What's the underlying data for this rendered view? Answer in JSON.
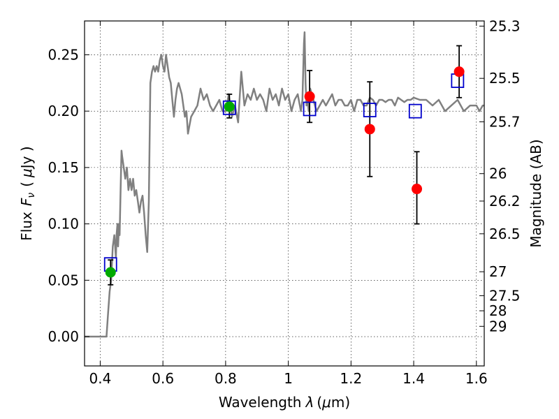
{
  "chart_data": {
    "type": "scatter",
    "xlabel_main": "Wavelength",
    "xlabel_sym": "λ",
    "xlabel_unit_open": "(",
    "xlabel_unit_mu": "μ",
    "xlabel_unit_rest": "m)",
    "ylabel_main": "Flux",
    "ylabel_sym": "F",
    "ylabel_sub": "ν",
    "ylabel_unit_open": "(",
    "ylabel_unit_mu": "μ",
    "ylabel_unit_rest": "Jy )",
    "y2label": "Magnitude (AB)",
    "xlim": [
      0.35,
      1.625
    ],
    "ylim": [
      -0.026,
      0.28
    ],
    "grid": true,
    "x_ticks": [
      {
        "v": 0.4,
        "label": "0.4"
      },
      {
        "v": 0.6,
        "label": "0.6"
      },
      {
        "v": 0.8,
        "label": "0.8"
      },
      {
        "v": 1.0,
        "label": "1"
      },
      {
        "v": 1.2,
        "label": "1.2"
      },
      {
        "v": 1.4,
        "label": "1.4"
      },
      {
        "v": 1.6,
        "label": "1.6"
      }
    ],
    "y_ticks": [
      {
        "v": 0.0,
        "label": "0.00"
      },
      {
        "v": 0.05,
        "label": "0.05"
      },
      {
        "v": 0.1,
        "label": "0.10"
      },
      {
        "v": 0.15,
        "label": "0.15"
      },
      {
        "v": 0.2,
        "label": "0.20"
      },
      {
        "v": 0.25,
        "label": "0.25"
      }
    ],
    "mag_ticks": [
      {
        "v": 25.3,
        "label": "25.3"
      },
      {
        "v": 25.5,
        "label": "25.5"
      },
      {
        "v": 25.7,
        "label": "25.7"
      },
      {
        "v": 26,
        "label": "26"
      },
      {
        "v": 26.2,
        "label": "26.2"
      },
      {
        "v": 26.5,
        "label": "26.5"
      },
      {
        "v": 27,
        "label": "27"
      },
      {
        "v": 27.5,
        "label": "27.5"
      },
      {
        "v": 28,
        "label": "28"
      },
      {
        "v": 29,
        "label": "29"
      }
    ],
    "series": [
      {
        "type": "line",
        "color": "#808080",
        "x": [
          0.35,
          0.41,
          0.42,
          0.425,
          0.43,
          0.435,
          0.44,
          0.445,
          0.45,
          0.452,
          0.455,
          0.457,
          0.46,
          0.462,
          0.465,
          0.468,
          0.47,
          0.475,
          0.48,
          0.485,
          0.49,
          0.495,
          0.5,
          0.505,
          0.51,
          0.515,
          0.52,
          0.525,
          0.53,
          0.535,
          0.54,
          0.545,
          0.55,
          0.555,
          0.56,
          0.565,
          0.57,
          0.575,
          0.58,
          0.585,
          0.59,
          0.595,
          0.6,
          0.605,
          0.61,
          0.615,
          0.62,
          0.625,
          0.63,
          0.635,
          0.64,
          0.645,
          0.65,
          0.66,
          0.67,
          0.675,
          0.68,
          0.69,
          0.7,
          0.71,
          0.72,
          0.73,
          0.74,
          0.75,
          0.76,
          0.77,
          0.78,
          0.79,
          0.8,
          0.81,
          0.82,
          0.83,
          0.84,
          0.85,
          0.86,
          0.87,
          0.88,
          0.89,
          0.9,
          0.91,
          0.92,
          0.93,
          0.94,
          0.95,
          0.96,
          0.97,
          0.98,
          0.99,
          1.0,
          1.01,
          1.02,
          1.03,
          1.04,
          1.045,
          1.05,
          1.052,
          1.055,
          1.058,
          1.06,
          1.065,
          1.07,
          1.08,
          1.09,
          1.1,
          1.11,
          1.12,
          1.13,
          1.14,
          1.15,
          1.16,
          1.17,
          1.18,
          1.19,
          1.2,
          1.21,
          1.22,
          1.23,
          1.24,
          1.25,
          1.26,
          1.27,
          1.28,
          1.29,
          1.3,
          1.31,
          1.32,
          1.33,
          1.34,
          1.35,
          1.36,
          1.37,
          1.38,
          1.39,
          1.4,
          1.42,
          1.44,
          1.46,
          1.48,
          1.5,
          1.52,
          1.54,
          1.56,
          1.58,
          1.6,
          1.61,
          1.62,
          1.625
        ],
        "y": [
          0.0,
          0.0,
          0.0,
          0.02,
          0.04,
          0.05,
          0.08,
          0.09,
          0.07,
          0.09,
          0.1,
          0.08,
          0.1,
          0.09,
          0.13,
          0.165,
          0.16,
          0.15,
          0.14,
          0.15,
          0.13,
          0.14,
          0.13,
          0.14,
          0.125,
          0.13,
          0.12,
          0.11,
          0.12,
          0.125,
          0.11,
          0.09,
          0.075,
          0.12,
          0.225,
          0.235,
          0.24,
          0.235,
          0.24,
          0.235,
          0.245,
          0.25,
          0.24,
          0.235,
          0.25,
          0.24,
          0.23,
          0.225,
          0.21,
          0.195,
          0.21,
          0.22,
          0.225,
          0.215,
          0.195,
          0.2,
          0.18,
          0.195,
          0.2,
          0.205,
          0.22,
          0.21,
          0.215,
          0.205,
          0.2,
          0.205,
          0.21,
          0.2,
          0.2,
          0.215,
          0.195,
          0.205,
          0.19,
          0.235,
          0.205,
          0.215,
          0.21,
          0.22,
          0.21,
          0.215,
          0.21,
          0.2,
          0.22,
          0.21,
          0.215,
          0.205,
          0.22,
          0.21,
          0.215,
          0.2,
          0.21,
          0.215,
          0.2,
          0.21,
          0.26,
          0.27,
          0.225,
          0.205,
          0.215,
          0.2,
          0.22,
          0.21,
          0.2,
          0.205,
          0.21,
          0.205,
          0.21,
          0.215,
          0.205,
          0.21,
          0.21,
          0.205,
          0.205,
          0.21,
          0.2,
          0.21,
          0.21,
          0.205,
          0.205,
          0.212,
          0.21,
          0.205,
          0.21,
          0.21,
          0.208,
          0.21,
          0.21,
          0.205,
          0.212,
          0.21,
          0.208,
          0.21,
          0.21,
          0.212,
          0.21,
          0.21,
          0.205,
          0.21,
          0.2,
          0.205,
          0.21,
          0.2,
          0.205,
          0.205,
          0.2,
          0.205,
          0.205
        ]
      },
      {
        "type": "errorbar",
        "color": "#000000",
        "points": [
          {
            "x": 0.433,
            "lo": 0.046,
            "hi": 0.068
          },
          {
            "x": 0.812,
            "lo": 0.194,
            "hi": 0.215
          },
          {
            "x": 1.068,
            "lo": 0.19,
            "hi": 0.236
          },
          {
            "x": 1.26,
            "lo": 0.142,
            "hi": 0.226
          },
          {
            "x": 1.41,
            "lo": 0.1,
            "hi": 0.164
          },
          {
            "x": 1.545,
            "lo": 0.212,
            "hi": 0.258
          }
        ]
      },
      {
        "type": "open-square",
        "color": "#0000cc",
        "x": [
          0.433,
          0.812,
          1.068,
          1.26,
          1.405,
          1.54
        ],
        "y": [
          0.064,
          0.203,
          0.202,
          0.201,
          0.2,
          0.227
        ]
      },
      {
        "type": "filled-circle",
        "color": "#00aa00",
        "x": [
          0.433,
          0.812
        ],
        "y": [
          0.057,
          0.204
        ]
      },
      {
        "type": "filled-circle",
        "color": "#ff0000",
        "x": [
          1.068,
          1.26,
          1.41,
          1.545
        ],
        "y": [
          0.213,
          0.184,
          0.131,
          0.235
        ]
      }
    ]
  }
}
